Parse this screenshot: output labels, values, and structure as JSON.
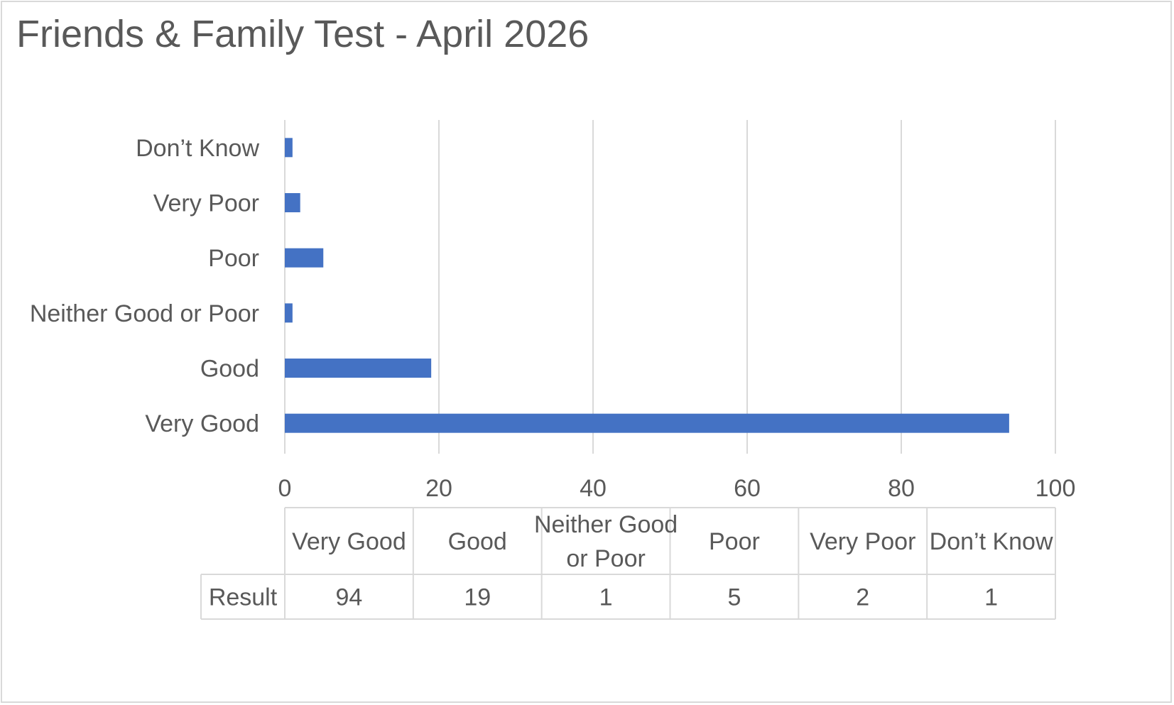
{
  "chart_data": {
    "type": "bar",
    "orientation": "horizontal",
    "title": "Friends & Family Test - April 2026",
    "categories": [
      "Very Good",
      "Good",
      "Neither Good or Poor",
      "Poor",
      "Very Poor",
      "Don’t Know"
    ],
    "category_labels": [
      "Very Good",
      "Good",
      "Neither Good or Poor",
      "Poor",
      "Very Poor",
      "Don’t Know"
    ],
    "table_headers": [
      [
        "Very Good"
      ],
      [
        "Good"
      ],
      [
        "Neither Good",
        "or Poor"
      ],
      [
        "Poor"
      ],
      [
        "Very Poor"
      ],
      [
        "Don’t Know"
      ]
    ],
    "series": [
      {
        "name": "Result",
        "values": [
          94,
          19,
          1,
          5,
          2,
          1
        ]
      }
    ],
    "xlim": [
      0,
      100
    ],
    "xticks": [
      0,
      20,
      40,
      60,
      80,
      100
    ],
    "grid": "vertical",
    "legend": "none",
    "data_table": true
  },
  "colors": {
    "bar": "#4472C4",
    "grid": "#d9d9d9",
    "text": "#595959"
  }
}
